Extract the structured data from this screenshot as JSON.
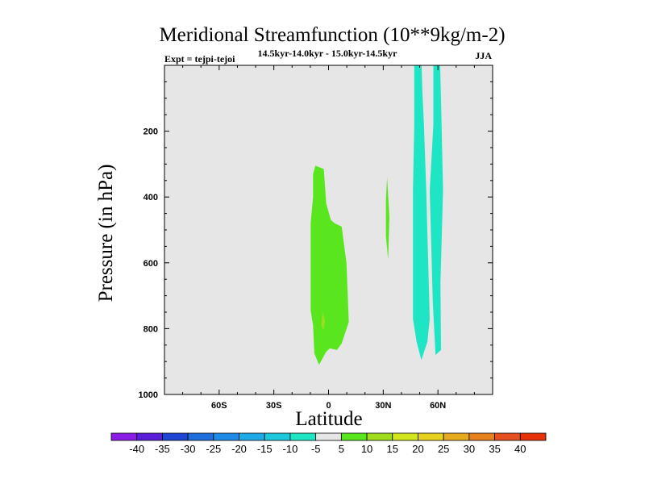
{
  "chart_data": {
    "type": "contour",
    "title": "Meridional Streamfunction (10**9kg/m-2)",
    "left_label": "Expt = tejpi-tejoi",
    "center_label": "14.5kyr-14.0kyr - 15.0kyr-14.5kyr",
    "right_label": "JJA",
    "xlabel": "Latitude",
    "ylabel": "Pressure (in hPa)",
    "xlim": [
      -90,
      90
    ],
    "ylim": [
      1000,
      0
    ],
    "x_ticks": [
      {
        "value": -60,
        "label": "60S"
      },
      {
        "value": -30,
        "label": "30S"
      },
      {
        "value": 0,
        "label": "0"
      },
      {
        "value": 30,
        "label": "30N"
      },
      {
        "value": 60,
        "label": "60N"
      }
    ],
    "y_ticks": [
      {
        "value": 200,
        "label": "200"
      },
      {
        "value": 400,
        "label": "400"
      },
      {
        "value": 600,
        "label": "600"
      },
      {
        "value": 800,
        "label": "800"
      },
      {
        "value": 1000,
        "label": "1000"
      }
    ],
    "background_color": "#e6e6e6",
    "colorbar": {
      "labels": [
        "-40",
        "-35",
        "-30",
        "-25",
        "-20",
        "-15",
        "-10",
        "-5",
        "5",
        "10",
        "15",
        "20",
        "25",
        "30",
        "35",
        "40"
      ],
      "colors": [
        "#8a1ee6",
        "#5a1ed8",
        "#1e46d2",
        "#1e6edc",
        "#1e8ce6",
        "#1eaae6",
        "#1ec8dc",
        "#1ee6c4",
        "#e6e6e6",
        "#5ae61e",
        "#a0dc1e",
        "#d2e61e",
        "#e6d21e",
        "#e6aa1e",
        "#e6821e",
        "#e6501e",
        "#e6320a"
      ]
    },
    "regions": [
      {
        "name": "positive-5-to-10-equator",
        "color": "#5ae61e",
        "points": [
          [
            -7.2,
            305
          ],
          [
            -2.6,
            315
          ],
          [
            -1.3,
            420
          ],
          [
            1.3,
            470
          ],
          [
            3.3,
            480
          ],
          [
            7.2,
            490
          ],
          [
            9.8,
            600
          ],
          [
            10.5,
            690
          ],
          [
            11.1,
            780
          ],
          [
            7.2,
            845
          ],
          [
            4.6,
            865
          ],
          [
            0.7,
            860
          ],
          [
            -1.3,
            870
          ],
          [
            -5.2,
            910
          ],
          [
            -7.8,
            875
          ],
          [
            -8.5,
            790
          ],
          [
            -9.8,
            745
          ],
          [
            -9.8,
            480
          ],
          [
            -8.5,
            400
          ],
          [
            -8.5,
            330
          ]
        ]
      },
      {
        "name": "positive-10-to-15-spot",
        "color": "#a0dc1e",
        "points": [
          [
            -3.3,
            750
          ],
          [
            -2.0,
            775
          ],
          [
            -2.6,
            805
          ],
          [
            -3.9,
            790
          ]
        ]
      },
      {
        "name": "positive-5-to-10-30n",
        "color": "#5ae61e",
        "points": [
          [
            32.1,
            340
          ],
          [
            33.4,
            460
          ],
          [
            32.7,
            590
          ],
          [
            31.5,
            520
          ],
          [
            31.5,
            410
          ]
        ]
      },
      {
        "name": "negative-10-to-5-west-plume",
        "color": "#1ee6c4",
        "points": [
          [
            47.0,
            -5
          ],
          [
            51.0,
            -5
          ],
          [
            51.5,
            80
          ],
          [
            52.3,
            180
          ],
          [
            53.6,
            380
          ],
          [
            55.5,
            770
          ],
          [
            54.2,
            840
          ],
          [
            50.9,
            895
          ],
          [
            48.3,
            840
          ],
          [
            46.3,
            770
          ],
          [
            46.3,
            380
          ],
          [
            47.0,
            180
          ]
        ]
      },
      {
        "name": "negative-10-to-5-east-plume",
        "color": "#1ee6c4",
        "points": [
          [
            57.5,
            -5
          ],
          [
            61.2,
            -5
          ],
          [
            62.0,
            180
          ],
          [
            62.8,
            380
          ],
          [
            61.4,
            660
          ],
          [
            61.7,
            865
          ],
          [
            58.7,
            880
          ],
          [
            57.2,
            720
          ],
          [
            55.5,
            380
          ],
          [
            57.5,
            180
          ]
        ]
      }
    ]
  }
}
